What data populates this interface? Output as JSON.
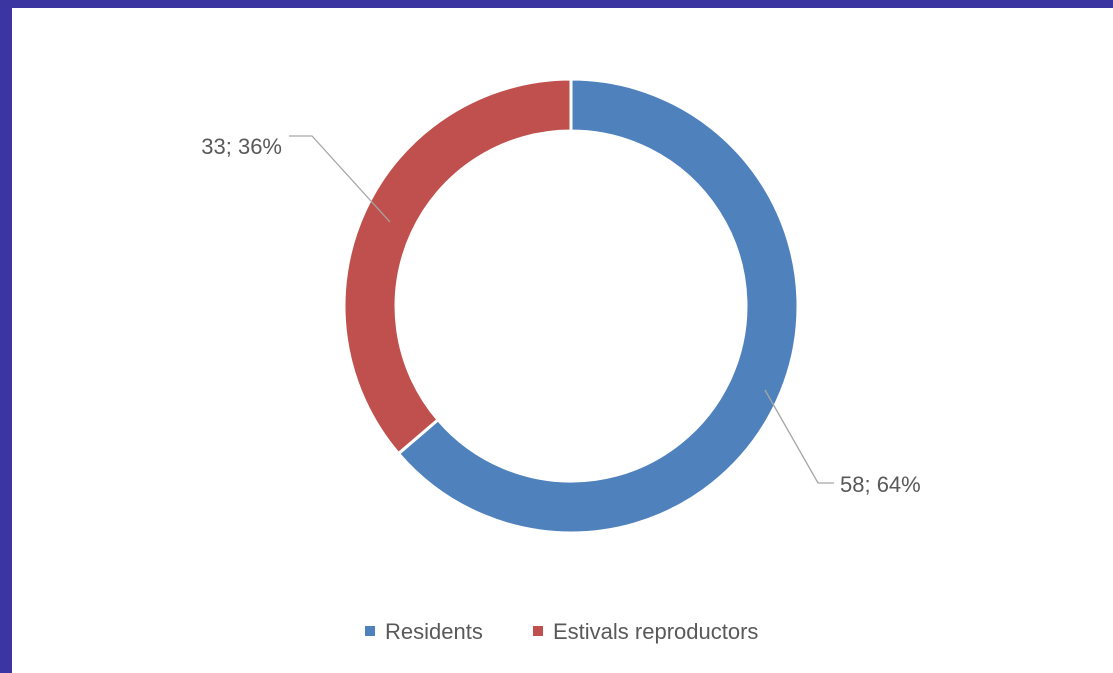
{
  "chart_data": {
    "type": "doughnut",
    "series": [
      {
        "name": "Residents",
        "value": 58,
        "percent": "64%",
        "label": "58; 64%",
        "color": "#4f81bd"
      },
      {
        "name": "Estivals reproductors",
        "value": 33,
        "percent": "36%",
        "label": "33; 36%",
        "color": "#c0504d"
      }
    ],
    "legend": {
      "position": "bottom"
    },
    "colors": {
      "frame": "#3a35a0",
      "background": "#ffffff",
      "text": "#595959",
      "leader": "#a6a6a6"
    }
  }
}
